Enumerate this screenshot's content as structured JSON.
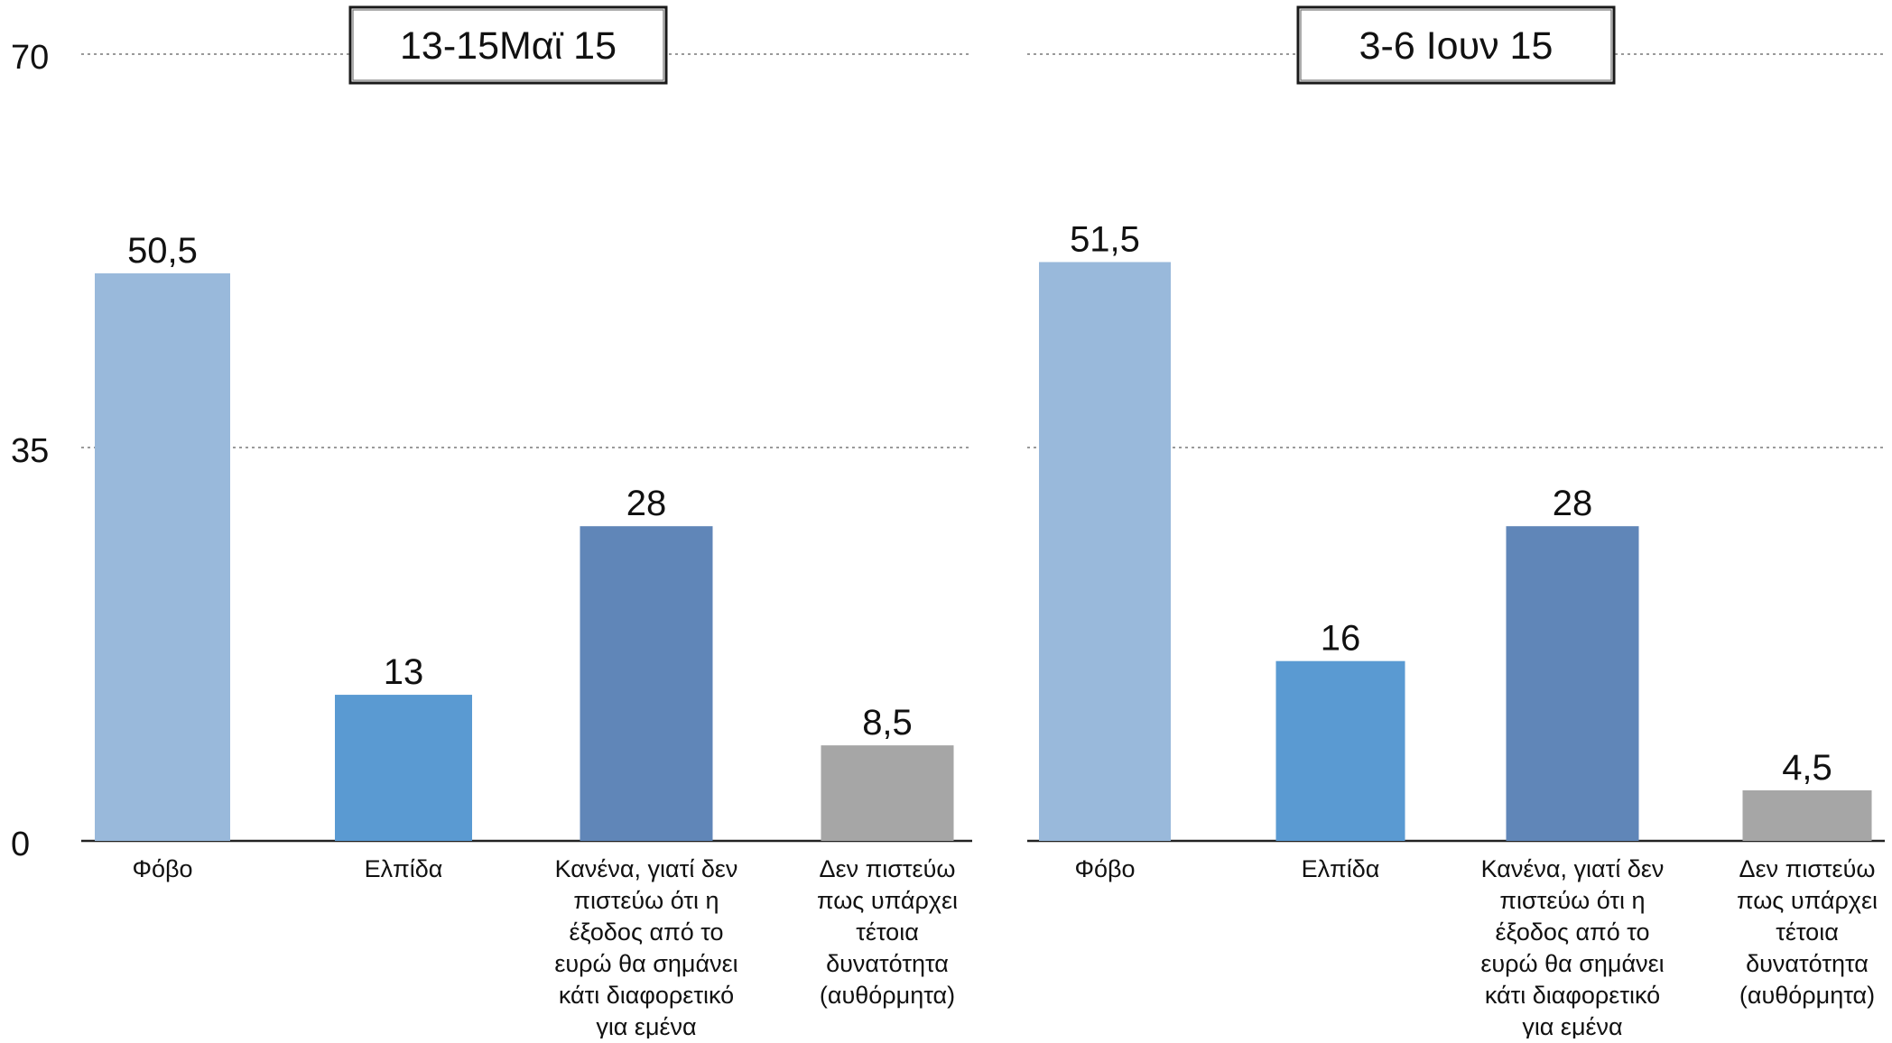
{
  "chart_data": [
    {
      "type": "bar",
      "title": "13-15Μαϊ 15",
      "categories": [
        "Φόβο",
        "Ελπίδα",
        "Κανένα, γιατί δεν πιστεύω ότι η έξοδος από το ευρώ θα σημάνει κάτι διαφορετικό για εμένα",
        "Δεν πιστεύω πως υπάρχει τέτοια δυνατότητα (αυθόρμητα)"
      ],
      "category_lines": [
        [
          "Φόβο"
        ],
        [
          "Ελπίδα"
        ],
        [
          "Κανένα, γιατί δεν",
          "πιστεύω ότι η",
          "έξοδος από το",
          "ευρώ θα σημάνει",
          "κάτι διαφορετικό",
          "για εμένα"
        ],
        [
          "Δεν πιστεύω",
          "πως υπάρχει",
          "τέτοια",
          "δυνατότητα",
          "(αυθόρμητα)"
        ]
      ],
      "values": [
        50.5,
        13,
        28,
        8.5
      ],
      "value_labels": [
        "50,5",
        "13",
        "28",
        "8,5"
      ],
      "ylim": [
        0,
        70
      ],
      "yticks": [
        0,
        35,
        70
      ],
      "ytick_labels": [
        "0",
        "35",
        "70"
      ],
      "grid": true,
      "xlabel": "",
      "ylabel": ""
    },
    {
      "type": "bar",
      "title": "3-6 Ιουν 15",
      "categories": [
        "Φόβο",
        "Ελπίδα",
        "Κανένα, γιατί δεν πιστεύω ότι η έξοδος από το ευρώ θα σημάνει κάτι διαφορετικό για εμένα",
        "Δεν πιστεύω πως υπάρχει τέτοια δυνατότητα (αυθόρμητα)"
      ],
      "category_lines": [
        [
          "Φόβο"
        ],
        [
          "Ελπίδα"
        ],
        [
          "Κανένα, γιατί δεν",
          "πιστεύω ότι η",
          "έξοδος από το",
          "ευρώ θα σημάνει",
          "κάτι διαφορετικό",
          "για εμένα"
        ],
        [
          "Δεν πιστεύω",
          "πως υπάρχει",
          "τέτοια",
          "δυνατότητα",
          "(αυθόρμητα)"
        ]
      ],
      "values": [
        51.5,
        16,
        28,
        4.5
      ],
      "value_labels": [
        "51,5",
        "16",
        "28",
        "4,5"
      ],
      "ylim": [
        0,
        70
      ],
      "yticks": [
        0,
        35,
        70
      ],
      "ytick_labels": [
        "0",
        "35",
        "70"
      ],
      "grid": true,
      "xlabel": "",
      "ylabel": ""
    }
  ],
  "colors": {
    "bars": [
      "#99b9db",
      "#5a9ad2",
      "#6086b8",
      "#a6a6a6"
    ],
    "grid": "#9a9a9a",
    "axis": "#222222",
    "text": "#111111",
    "title_box_border": "#1a1a1a"
  }
}
